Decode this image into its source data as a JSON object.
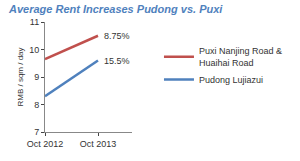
{
  "chart_data": {
    "type": "line",
    "title": "Average Rent Increases Pudong vs. Puxi",
    "y_label": "RMB / sqm / day",
    "categories": [
      "Oct 2012",
      "Oct 2013"
    ],
    "series": [
      {
        "name": "Puxi Nanjing Road & Huaihai Road",
        "color": "#c0504d",
        "values": [
          9.65,
          10.5
        ],
        "annotation": "8.75%"
      },
      {
        "name": "Pudong Lujiazui",
        "color": "#4f81bd",
        "values": [
          8.3,
          9.6
        ],
        "annotation": "15.5%"
      }
    ],
    "ylim": [
      7,
      11
    ],
    "yticks": [
      7,
      8,
      9,
      10,
      11
    ],
    "grid": false,
    "legend": "right"
  }
}
